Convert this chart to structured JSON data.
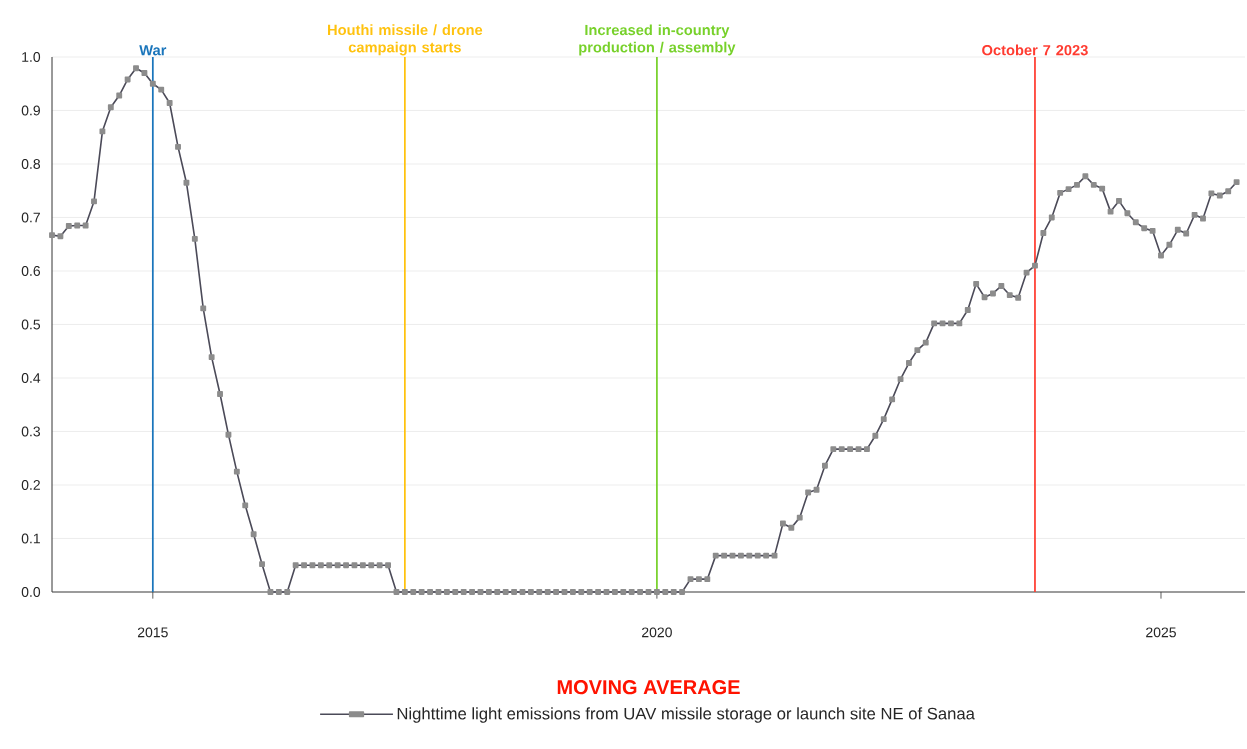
{
  "chart_data": {
    "type": "line",
    "x": [
      "2014-01",
      "2014-02",
      "2014-03",
      "2014-04",
      "2014-05",
      "2014-06",
      "2014-07",
      "2014-08",
      "2014-09",
      "2014-10",
      "2014-11",
      "2014-12",
      "2015-01",
      "2015-02",
      "2015-03",
      "2015-04",
      "2015-05",
      "2015-06",
      "2015-07",
      "2015-08",
      "2015-09",
      "2015-10",
      "2015-11",
      "2015-12",
      "2016-01",
      "2016-02",
      "2016-03",
      "2016-04",
      "2016-05",
      "2016-06",
      "2016-07",
      "2016-08",
      "2016-09",
      "2016-10",
      "2016-11",
      "2016-12",
      "2017-01",
      "2017-02",
      "2017-03",
      "2017-04",
      "2017-05",
      "2017-06",
      "2017-07",
      "2017-08",
      "2017-09",
      "2017-10",
      "2017-11",
      "2017-12",
      "2018-01",
      "2018-02",
      "2018-03",
      "2018-04",
      "2018-05",
      "2018-06",
      "2018-07",
      "2018-08",
      "2018-09",
      "2018-10",
      "2018-11",
      "2018-12",
      "2019-01",
      "2019-02",
      "2019-03",
      "2019-04",
      "2019-05",
      "2019-06",
      "2019-07",
      "2019-08",
      "2019-09",
      "2019-10",
      "2019-11",
      "2019-12",
      "2020-01",
      "2020-02",
      "2020-03",
      "2020-04",
      "2020-05",
      "2020-06",
      "2020-07",
      "2020-08",
      "2020-09",
      "2020-10",
      "2020-11",
      "2020-12",
      "2021-01",
      "2021-02",
      "2021-03",
      "2021-04",
      "2021-05",
      "2021-06",
      "2021-07",
      "2021-08",
      "2021-09",
      "2021-10",
      "2021-11",
      "2021-12",
      "2022-01",
      "2022-02",
      "2022-03",
      "2022-04",
      "2022-05",
      "2022-06",
      "2022-07",
      "2022-08",
      "2022-09",
      "2022-10",
      "2022-11",
      "2022-12",
      "2023-01",
      "2023-02",
      "2023-03",
      "2023-04",
      "2023-05",
      "2023-06",
      "2023-07",
      "2023-08",
      "2023-09",
      "2023-10",
      "2023-11",
      "2023-12",
      "2024-01",
      "2024-02",
      "2024-03",
      "2024-04",
      "2024-05",
      "2024-06",
      "2024-07",
      "2024-08",
      "2024-09",
      "2024-10",
      "2024-11",
      "2024-12",
      "2025-01",
      "2025-02",
      "2025-03",
      "2025-04",
      "2025-05",
      "2025-06",
      "2025-07",
      "2025-08",
      "2025-09",
      "2025-10"
    ],
    "series": [
      {
        "name": "Nighttime light emissions from UAV missile storage or launch site NE of Sanaa",
        "color": "#4b4a58",
        "values": [
          0.667,
          0.665,
          0.684,
          0.685,
          0.685,
          0.73,
          0.861,
          0.906,
          0.928,
          0.958,
          0.979,
          0.97,
          0.95,
          0.939,
          0.914,
          0.832,
          0.765,
          0.66,
          0.53,
          0.439,
          0.37,
          0.294,
          0.225,
          0.162,
          0.108,
          0.052,
          0,
          0,
          0,
          0.05,
          0.05,
          0.05,
          0.05,
          0.05,
          0.05,
          0.05,
          0.05,
          0.05,
          0.05,
          0.05,
          0.05,
          0,
          0,
          0,
          0,
          0,
          0,
          0,
          0,
          0,
          0,
          0,
          0,
          0,
          0,
          0,
          0,
          0,
          0,
          0,
          0,
          0,
          0,
          0,
          0,
          0,
          0,
          0,
          0,
          0,
          0,
          0,
          0,
          0,
          0,
          0,
          0.024,
          0.024,
          0.024,
          0.068,
          0.068,
          0.068,
          0.068,
          0.068,
          0.068,
          0.068,
          0.068,
          0.128,
          0.12,
          0.139,
          0.186,
          0.191,
          0.236,
          0.267,
          0.267,
          0.267,
          0.267,
          0.267,
          0.292,
          0.323,
          0.36,
          0.398,
          0.428,
          0.452,
          0.466,
          0.502,
          0.502,
          0.502,
          0.502,
          0.527,
          0.576,
          0.551,
          0.558,
          0.572,
          0.555,
          0.55,
          0.597,
          0.61,
          0.671,
          0.7,
          0.746,
          0.753,
          0.761,
          0.777,
          0.761,
          0.754,
          0.711,
          0.731,
          0.708,
          0.691,
          0.68,
          0.675,
          0.629,
          0.649,
          0.677,
          0.67,
          0.705,
          0.698,
          0.745,
          0.741,
          0.749,
          0.766
        ]
      }
    ],
    "xlim": [
      "2014-01",
      "2025-11"
    ],
    "xticks": [
      "2015",
      "2020",
      "2025"
    ],
    "ylim": [
      0,
      1
    ],
    "yticks": [
      {
        "value": 0,
        "label": "0.0"
      },
      {
        "value": 0.1,
        "label": "0.1"
      },
      {
        "value": 0.2,
        "label": "0.2"
      },
      {
        "value": 0.3,
        "label": "0.3"
      },
      {
        "value": 0.4,
        "label": "0.4"
      },
      {
        "value": 0.5,
        "label": "0.5"
      },
      {
        "value": 0.6,
        "label": "0.6"
      },
      {
        "value": 0.7,
        "label": "0.7"
      },
      {
        "value": 0.8,
        "label": "0.8"
      },
      {
        "value": 0.9,
        "label": "0.9"
      },
      {
        "value": 1,
        "label": "1.0"
      }
    ],
    "ref_lines": [
      {
        "axis": "x",
        "value": "2015-01",
        "label": "War",
        "color": "#1a75bb"
      },
      {
        "axis": "x",
        "value": "2017-07",
        "label": "Houthi missile / drone campaign starts",
        "color": "#ffc20e"
      },
      {
        "axis": "x",
        "value": "2020-01",
        "label": "Increased in-country production / assembly",
        "color": "#77d12a"
      },
      {
        "axis": "x",
        "value": "2023-10",
        "label": "October 7 2023",
        "color": "#ff3b30"
      }
    ],
    "legend_title": "MOVING AVERAGE",
    "legend": "bottom",
    "grid": "y",
    "marker": "square"
  }
}
